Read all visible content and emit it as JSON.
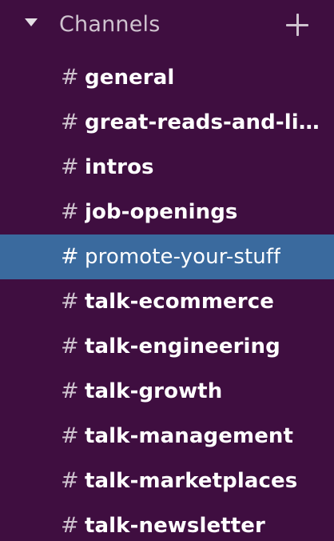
{
  "section": {
    "title": "Channels",
    "toggle_icon": "caret-down-icon",
    "add_icon": "plus-icon"
  },
  "channels": [
    {
      "prefix": "#",
      "name": "general",
      "selected": false,
      "unread": true
    },
    {
      "prefix": "#",
      "name": "great-reads-and-list...",
      "selected": false,
      "unread": true
    },
    {
      "prefix": "#",
      "name": "intros",
      "selected": false,
      "unread": true
    },
    {
      "prefix": "#",
      "name": "job-openings",
      "selected": false,
      "unread": true
    },
    {
      "prefix": "#",
      "name": "promote-your-stuff",
      "selected": true,
      "unread": false
    },
    {
      "prefix": "#",
      "name": "talk-ecommerce",
      "selected": false,
      "unread": true
    },
    {
      "prefix": "#",
      "name": "talk-engineering",
      "selected": false,
      "unread": true
    },
    {
      "prefix": "#",
      "name": "talk-growth",
      "selected": false,
      "unread": true
    },
    {
      "prefix": "#",
      "name": "talk-management",
      "selected": false,
      "unread": true
    },
    {
      "prefix": "#",
      "name": "talk-marketplaces",
      "selected": false,
      "unread": true
    },
    {
      "prefix": "#",
      "name": "talk-newsletter",
      "selected": false,
      "unread": true
    }
  ],
  "colors": {
    "sidebar_bg": "#3f0e40",
    "selected_bg": "#3a6a9e",
    "muted_text": "#cfc3cf",
    "active_text": "#ffffff"
  }
}
